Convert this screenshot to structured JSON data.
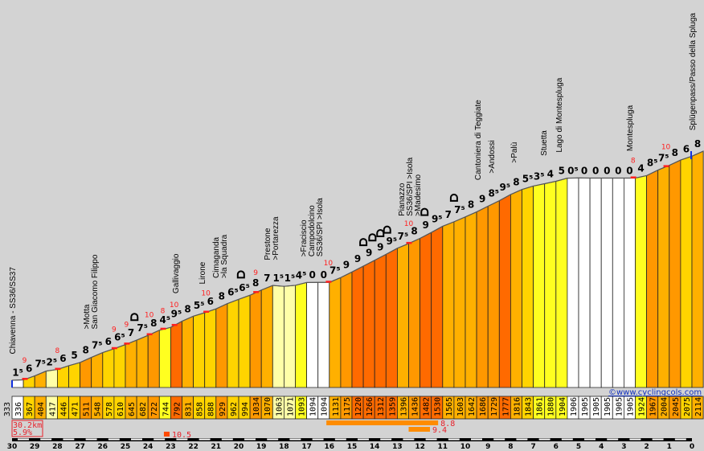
{
  "chart_data": {
    "type": "area",
    "title": "",
    "xlabel": "",
    "ylabel": "",
    "x_axis": {
      "direction": "km remaining",
      "xlim": [
        30,
        0
      ],
      "ticks": [
        30,
        29,
        28,
        27,
        26,
        25,
        24,
        23,
        22,
        21,
        20,
        19,
        18,
        17,
        16,
        15,
        14,
        13,
        12,
        11,
        10,
        9,
        8,
        7,
        6,
        5,
        4,
        3,
        2,
        1,
        0
      ]
    },
    "segment_length_km": 0.5,
    "start_elevation": "333",
    "elevations": [
      "336",
      "367",
      "404",
      "417",
      "446",
      "471",
      "511",
      "548",
      "578",
      "610",
      "645",
      "682",
      "722",
      "744",
      "792",
      "831",
      "858",
      "888",
      "929",
      "962",
      "994",
      "1034",
      "1070",
      "1063",
      "1071",
      "1093",
      "1094",
      "1094",
      "1131",
      "1175",
      "1220",
      "1266",
      "1312",
      "1359",
      "1396",
      "1436",
      "1482",
      "1530",
      "1565",
      "1603",
      "1642",
      "1686",
      "1729",
      "1777",
      "1816",
      "1843",
      "1861",
      "1880",
      "1904",
      "1906",
      "1905",
      "1905",
      "1905",
      "1905",
      "1905",
      "1924",
      "1967",
      "2004",
      "2045",
      "2075"
    ],
    "end_elevation": "2114",
    "gradient_labels": [
      "1⁵",
      "6",
      "7⁵",
      "2⁵",
      "6",
      "5",
      "8",
      "7⁵",
      "6",
      "6⁵",
      "7",
      "7⁵",
      "8",
      "4⁵",
      "9⁵",
      "8",
      "5⁵",
      "6",
      "8",
      "6⁵",
      "6⁵",
      "8",
      "7",
      "1⁵",
      "1⁵",
      "4⁵",
      "0",
      "0",
      "7⁵",
      "9",
      "9",
      "9",
      "9",
      "9⁵",
      "7⁵",
      "8",
      "9",
      "9⁵",
      "7",
      "7⁵",
      "8",
      "9",
      "8⁵",
      "9⁵",
      "8",
      "5⁵",
      "3⁵",
      "4",
      "5",
      "0⁵",
      "0",
      "0",
      "0",
      "0",
      "0",
      "4",
      "8⁵",
      "7⁵",
      "8",
      "6",
      "8"
    ],
    "max_gradients": [
      {
        "km": 29.45,
        "value": "9"
      },
      {
        "km": 28.0,
        "value": "8"
      },
      {
        "km": 25.5,
        "value": "9"
      },
      {
        "km": 24.95,
        "value": "9"
      },
      {
        "km": 23.95,
        "value": "10"
      },
      {
        "km": 23.35,
        "value": "8"
      },
      {
        "km": 22.85,
        "value": "10"
      },
      {
        "km": 21.45,
        "value": "10"
      },
      {
        "km": 19.25,
        "value": "9"
      },
      {
        "km": 16.05,
        "value": "10"
      },
      {
        "km": 12.5,
        "value": "10"
      },
      {
        "km": 2.6,
        "value": "8"
      },
      {
        "km": 1.15,
        "value": "10"
      }
    ],
    "places": [
      {
        "km": 30.0,
        "lines": [
          "Chiavenna - SS36/SS37"
        ]
      },
      {
        "km": 26.74,
        "lines": [
          ">Motta",
          "San Giacomo Filippo"
        ]
      },
      {
        "km": 22.8,
        "lines": [
          "Gallivaggio"
        ]
      },
      {
        "km": 21.63,
        "lines": [
          "Lirone"
        ]
      },
      {
        "km": 21.03,
        "lines": [
          "Cimaganda",
          ">la Squadra"
        ]
      },
      {
        "km": 18.76,
        "lines": [
          "Prestone",
          ">Portarezza"
        ]
      },
      {
        "km": 17.16,
        "lines": [
          ">Fraciscio"
        ]
      },
      {
        "km": 16.8,
        "lines": [
          "Campodolcino",
          "SS36/SPI >Isola"
        ]
      },
      {
        "km": 12.84,
        "lines": [
          "Pianazzo",
          "SS36/SPI >Isola",
          ">Madesimo"
        ]
      },
      {
        "km": 9.47,
        "lines": [
          "Cantoniera di Teggiate"
        ]
      },
      {
        "km": 8.87,
        "lines": [
          ">Andossi"
        ]
      },
      {
        "km": 7.87,
        "lines": [
          ">Palù"
        ]
      },
      {
        "km": 6.56,
        "lines": [
          "Stuetta"
        ]
      },
      {
        "km": 5.89,
        "lines": [
          "Lago di Montespluga"
        ]
      },
      {
        "km": 2.77,
        "lines": [
          "Montespluga"
        ]
      },
      {
        "km": 0.0,
        "lines": [
          "Splügenpass/Passo della Spluga"
        ]
      }
    ],
    "tunnels_km": [
      24.6,
      19.9,
      14.5,
      14.1,
      13.75,
      13.45,
      11.8,
      10.5
    ],
    "steepest_sections": [
      {
        "from_km": 23.3,
        "to_km": 23.05,
        "value": "10.5"
      },
      {
        "from_km": 16.13,
        "to_km": 11.2,
        "value": "8.8"
      },
      {
        "from_km": 12.5,
        "to_km": 11.56,
        "value": "9.4"
      }
    ],
    "summary": {
      "distance": "30.2km",
      "avg_gradient": "5.9%"
    },
    "color_scale": [
      {
        "max": 1,
        "color": "#ffffff"
      },
      {
        "max": 3,
        "color": "#ffffa8"
      },
      {
        "max": 5,
        "color": "#ffff20"
      },
      {
        "max": 7,
        "color": "#ffd400"
      },
      {
        "max": 8,
        "color": "#ffb000"
      },
      {
        "max": 9,
        "color": "#ff9800"
      },
      {
        "max": 99,
        "color": "#ff6a00"
      }
    ]
  },
  "copyright": "©www.cyclingcols.com"
}
